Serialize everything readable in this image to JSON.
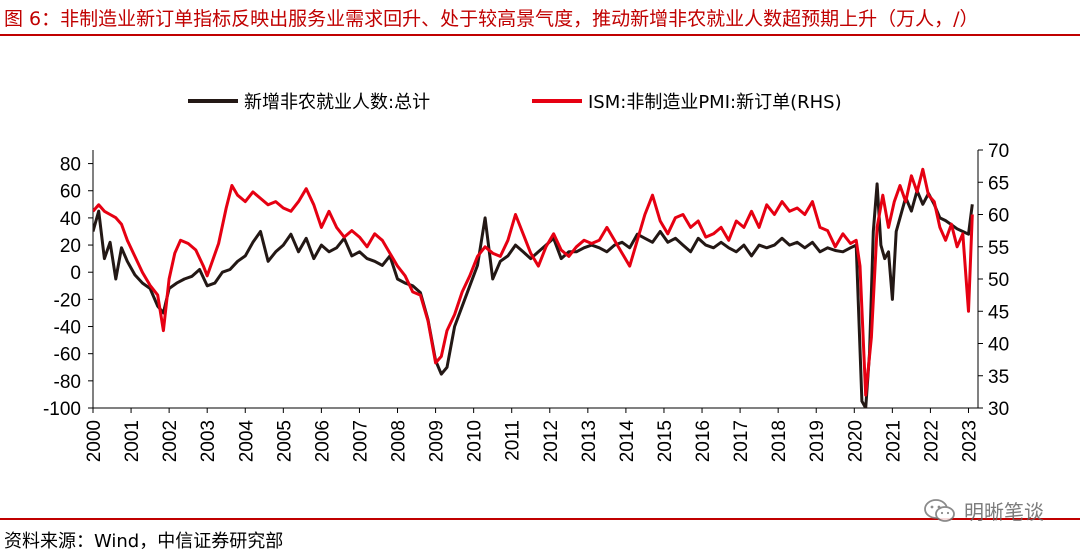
{
  "header": {
    "title": "图 6：非制造业新订单指标反映出服务业需求回升、处于较高景气度，推动新增非农就业人数超预期上升（万人，/）"
  },
  "footer": {
    "source": "资料来源：Wind，中信证券研究部"
  },
  "watermark": {
    "text": "明晰笔谈",
    "icon": "wechat-icon"
  },
  "colors": {
    "series_primary": "#231815",
    "series_secondary": "#e60012",
    "accent": "#c00000"
  },
  "chart_data": {
    "type": "line",
    "title": "非制造业新订单指标反映出服务业需求回升、处于较高景气度，推动新增非农就业人数超预期上升",
    "legend_position": "top",
    "x_axis": {
      "min": 2000,
      "max": 2023.25,
      "ticks": [
        2000,
        2001,
        2002,
        2003,
        2004,
        2005,
        2006,
        2007,
        2008,
        2009,
        2010,
        2011,
        2012,
        2013,
        2014,
        2015,
        2016,
        2017,
        2018,
        2019,
        2020,
        2021,
        2022,
        2023
      ],
      "tick_labels": [
        "2000",
        "2001",
        "2002",
        "2003",
        "2004",
        "2005",
        "2006",
        "2007",
        "2008",
        "2009",
        "2010",
        "2011",
        "2012",
        "2013",
        "2014",
        "2015",
        "2016",
        "2017",
        "2018",
        "2019",
        "2020",
        "2021",
        "2022",
        "2023"
      ]
    },
    "y_left": {
      "min": -100,
      "max": 90,
      "ticks": [
        -100,
        -80,
        -60,
        -40,
        -20,
        0,
        20,
        40,
        60,
        80
      ],
      "tick_labels": [
        "-100",
        "-80",
        "-60",
        "-40",
        "-20",
        "0",
        "20",
        "40",
        "60",
        "80"
      ]
    },
    "y_right": {
      "min": 30,
      "max": 70,
      "ticks": [
        30,
        35,
        40,
        45,
        50,
        55,
        60,
        65,
        70
      ],
      "tick_labels": [
        "30",
        "35",
        "40",
        "45",
        "50",
        "55",
        "60",
        "65",
        "70"
      ]
    },
    "series": [
      {
        "name": "新增非农就业人数:总计",
        "axis": "left",
        "color": "#231815",
        "points": [
          [
            2000.0,
            30
          ],
          [
            2000.15,
            45
          ],
          [
            2000.3,
            10
          ],
          [
            2000.45,
            22
          ],
          [
            2000.6,
            -5
          ],
          [
            2000.75,
            18
          ],
          [
            2000.9,
            8
          ],
          [
            2001.1,
            -2
          ],
          [
            2001.3,
            -8
          ],
          [
            2001.5,
            -12
          ],
          [
            2001.7,
            -25
          ],
          [
            2001.85,
            -30
          ],
          [
            2002.0,
            -12
          ],
          [
            2002.2,
            -8
          ],
          [
            2002.4,
            -5
          ],
          [
            2002.6,
            -3
          ],
          [
            2002.8,
            2
          ],
          [
            2003.0,
            -10
          ],
          [
            2003.2,
            -8
          ],
          [
            2003.4,
            0
          ],
          [
            2003.6,
            2
          ],
          [
            2003.8,
            8
          ],
          [
            2004.0,
            12
          ],
          [
            2004.2,
            22
          ],
          [
            2004.4,
            30
          ],
          [
            2004.6,
            8
          ],
          [
            2004.8,
            15
          ],
          [
            2005.0,
            20
          ],
          [
            2005.2,
            28
          ],
          [
            2005.4,
            15
          ],
          [
            2005.6,
            25
          ],
          [
            2005.8,
            10
          ],
          [
            2006.0,
            20
          ],
          [
            2006.2,
            15
          ],
          [
            2006.4,
            18
          ],
          [
            2006.6,
            25
          ],
          [
            2006.8,
            12
          ],
          [
            2007.0,
            15
          ],
          [
            2007.2,
            10
          ],
          [
            2007.4,
            8
          ],
          [
            2007.6,
            5
          ],
          [
            2007.8,
            12
          ],
          [
            2008.0,
            -5
          ],
          [
            2008.2,
            -8
          ],
          [
            2008.4,
            -10
          ],
          [
            2008.6,
            -15
          ],
          [
            2008.8,
            -35
          ],
          [
            2009.0,
            -65
          ],
          [
            2009.15,
            -75
          ],
          [
            2009.3,
            -70
          ],
          [
            2009.5,
            -40
          ],
          [
            2009.7,
            -25
          ],
          [
            2009.9,
            -10
          ],
          [
            2010.1,
            5
          ],
          [
            2010.3,
            40
          ],
          [
            2010.5,
            -5
          ],
          [
            2010.7,
            8
          ],
          [
            2010.9,
            12
          ],
          [
            2011.1,
            20
          ],
          [
            2011.3,
            15
          ],
          [
            2011.5,
            10
          ],
          [
            2011.7,
            15
          ],
          [
            2011.9,
            20
          ],
          [
            2012.1,
            25
          ],
          [
            2012.3,
            10
          ],
          [
            2012.5,
            15
          ],
          [
            2012.7,
            15
          ],
          [
            2012.9,
            18
          ],
          [
            2013.1,
            20
          ],
          [
            2013.3,
            18
          ],
          [
            2013.5,
            15
          ],
          [
            2013.7,
            20
          ],
          [
            2013.9,
            22
          ],
          [
            2014.1,
            18
          ],
          [
            2014.3,
            28
          ],
          [
            2014.5,
            25
          ],
          [
            2014.7,
            22
          ],
          [
            2014.9,
            30
          ],
          [
            2015.1,
            22
          ],
          [
            2015.3,
            25
          ],
          [
            2015.5,
            20
          ],
          [
            2015.7,
            15
          ],
          [
            2015.9,
            25
          ],
          [
            2016.1,
            20
          ],
          [
            2016.3,
            18
          ],
          [
            2016.5,
            22
          ],
          [
            2016.7,
            18
          ],
          [
            2016.9,
            15
          ],
          [
            2017.1,
            20
          ],
          [
            2017.3,
            12
          ],
          [
            2017.5,
            20
          ],
          [
            2017.7,
            18
          ],
          [
            2017.9,
            20
          ],
          [
            2018.1,
            25
          ],
          [
            2018.3,
            20
          ],
          [
            2018.5,
            22
          ],
          [
            2018.7,
            18
          ],
          [
            2018.9,
            22
          ],
          [
            2019.1,
            15
          ],
          [
            2019.3,
            18
          ],
          [
            2019.5,
            16
          ],
          [
            2019.7,
            15
          ],
          [
            2019.9,
            18
          ],
          [
            2020.05,
            20
          ],
          [
            2020.2,
            -95
          ],
          [
            2020.3,
            -100
          ],
          [
            2020.4,
            -60
          ],
          [
            2020.5,
            30
          ],
          [
            2020.6,
            65
          ],
          [
            2020.7,
            20
          ],
          [
            2020.8,
            10
          ],
          [
            2020.9,
            15
          ],
          [
            2021.0,
            -20
          ],
          [
            2021.1,
            30
          ],
          [
            2021.2,
            40
          ],
          [
            2021.35,
            55
          ],
          [
            2021.5,
            45
          ],
          [
            2021.65,
            60
          ],
          [
            2021.8,
            50
          ],
          [
            2021.95,
            58
          ],
          [
            2022.1,
            50
          ],
          [
            2022.25,
            40
          ],
          [
            2022.4,
            38
          ],
          [
            2022.55,
            35
          ],
          [
            2022.7,
            32
          ],
          [
            2022.85,
            30
          ],
          [
            2023.0,
            28
          ],
          [
            2023.1,
            50
          ]
        ]
      },
      {
        "name": "ISM:非制造业PMI:新订单(RHS)",
        "axis": "right",
        "color": "#e60012",
        "points": [
          [
            2000.0,
            60.5
          ],
          [
            2000.15,
            61.5
          ],
          [
            2000.3,
            60.5
          ],
          [
            2000.45,
            60.0
          ],
          [
            2000.6,
            59.5
          ],
          [
            2000.75,
            58.5
          ],
          [
            2000.9,
            56.0
          ],
          [
            2001.1,
            53.5
          ],
          [
            2001.3,
            51.0
          ],
          [
            2001.5,
            49.0
          ],
          [
            2001.7,
            47.5
          ],
          [
            2001.85,
            42.0
          ],
          [
            2002.0,
            50.0
          ],
          [
            2002.15,
            54.0
          ],
          [
            2002.3,
            56.0
          ],
          [
            2002.5,
            55.5
          ],
          [
            2002.7,
            54.5
          ],
          [
            2002.9,
            52.0
          ],
          [
            2003.0,
            50.5
          ],
          [
            2003.15,
            53.0
          ],
          [
            2003.3,
            55.5
          ],
          [
            2003.5,
            61.0
          ],
          [
            2003.65,
            64.5
          ],
          [
            2003.8,
            63.0
          ],
          [
            2004.0,
            62.0
          ],
          [
            2004.2,
            63.5
          ],
          [
            2004.4,
            62.5
          ],
          [
            2004.6,
            61.5
          ],
          [
            2004.8,
            62.0
          ],
          [
            2005.0,
            61.0
          ],
          [
            2005.2,
            60.5
          ],
          [
            2005.4,
            62.0
          ],
          [
            2005.6,
            64.0
          ],
          [
            2005.8,
            61.5
          ],
          [
            2006.0,
            58.0
          ],
          [
            2006.2,
            60.5
          ],
          [
            2006.4,
            58.0
          ],
          [
            2006.6,
            56.5
          ],
          [
            2006.8,
            57.5
          ],
          [
            2007.0,
            56.5
          ],
          [
            2007.2,
            55.0
          ],
          [
            2007.4,
            57.0
          ],
          [
            2007.6,
            56.0
          ],
          [
            2007.8,
            54.0
          ],
          [
            2008.0,
            52.0
          ],
          [
            2008.2,
            50.5
          ],
          [
            2008.4,
            48.0
          ],
          [
            2008.6,
            47.5
          ],
          [
            2008.8,
            43.5
          ],
          [
            2009.0,
            37.0
          ],
          [
            2009.15,
            38.0
          ],
          [
            2009.3,
            42.0
          ],
          [
            2009.5,
            44.5
          ],
          [
            2009.7,
            48.0
          ],
          [
            2009.9,
            50.5
          ],
          [
            2010.1,
            53.5
          ],
          [
            2010.3,
            55.0
          ],
          [
            2010.5,
            54.0
          ],
          [
            2010.7,
            53.5
          ],
          [
            2010.9,
            56.0
          ],
          [
            2011.1,
            60.0
          ],
          [
            2011.3,
            57.0
          ],
          [
            2011.5,
            54.0
          ],
          [
            2011.7,
            52.0
          ],
          [
            2011.9,
            55.0
          ],
          [
            2012.1,
            57.0
          ],
          [
            2012.3,
            54.5
          ],
          [
            2012.5,
            53.5
          ],
          [
            2012.7,
            55.0
          ],
          [
            2012.9,
            56.0
          ],
          [
            2013.1,
            55.5
          ],
          [
            2013.3,
            56.0
          ],
          [
            2013.5,
            58.0
          ],
          [
            2013.7,
            56.0
          ],
          [
            2013.9,
            54.0
          ],
          [
            2014.1,
            52.0
          ],
          [
            2014.3,
            56.0
          ],
          [
            2014.5,
            60.0
          ],
          [
            2014.7,
            63.0
          ],
          [
            2014.9,
            59.0
          ],
          [
            2015.1,
            57.0
          ],
          [
            2015.3,
            59.5
          ],
          [
            2015.5,
            60.0
          ],
          [
            2015.7,
            58.0
          ],
          [
            2015.9,
            59.0
          ],
          [
            2016.1,
            56.5
          ],
          [
            2016.3,
            57.0
          ],
          [
            2016.5,
            58.0
          ],
          [
            2016.7,
            56.0
          ],
          [
            2016.9,
            59.0
          ],
          [
            2017.1,
            58.0
          ],
          [
            2017.3,
            60.5
          ],
          [
            2017.5,
            58.0
          ],
          [
            2017.7,
            61.5
          ],
          [
            2017.9,
            60.0
          ],
          [
            2018.1,
            62.0
          ],
          [
            2018.3,
            60.5
          ],
          [
            2018.5,
            61.0
          ],
          [
            2018.7,
            60.0
          ],
          [
            2018.9,
            62.0
          ],
          [
            2019.1,
            58.0
          ],
          [
            2019.3,
            57.5
          ],
          [
            2019.5,
            55.0
          ],
          [
            2019.7,
            57.0
          ],
          [
            2019.9,
            55.5
          ],
          [
            2020.05,
            56.0
          ],
          [
            2020.15,
            52.0
          ],
          [
            2020.3,
            32.0
          ],
          [
            2020.45,
            41.0
          ],
          [
            2020.6,
            58.0
          ],
          [
            2020.75,
            63.0
          ],
          [
            2020.9,
            58.0
          ],
          [
            2021.05,
            62.0
          ],
          [
            2021.2,
            64.5
          ],
          [
            2021.35,
            62.0
          ],
          [
            2021.5,
            66.0
          ],
          [
            2021.65,
            63.5
          ],
          [
            2021.8,
            67.0
          ],
          [
            2021.95,
            63.0
          ],
          [
            2022.1,
            62.0
          ],
          [
            2022.25,
            58.0
          ],
          [
            2022.4,
            56.0
          ],
          [
            2022.55,
            58.5
          ],
          [
            2022.7,
            55.0
          ],
          [
            2022.85,
            57.0
          ],
          [
            2023.0,
            45.0
          ],
          [
            2023.1,
            60.0
          ]
        ]
      }
    ]
  }
}
